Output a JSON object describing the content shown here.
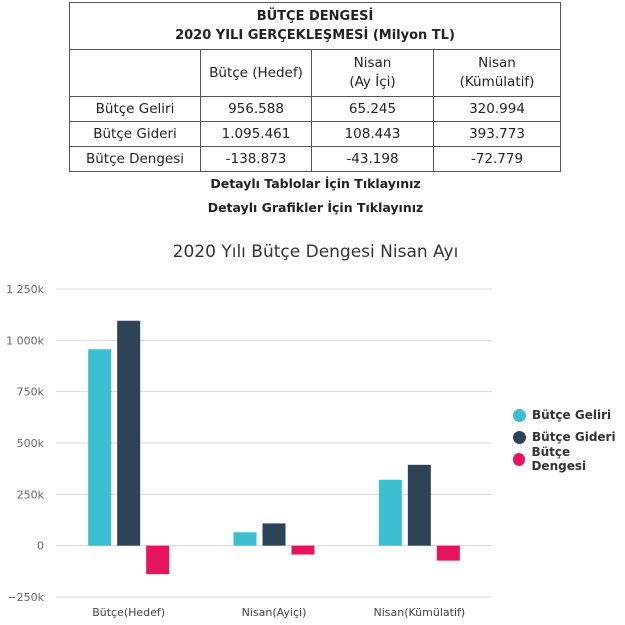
{
  "table": {
    "title_line1": "BÜTÇE DENGESİ",
    "title_line2": "2020 YILI GERÇEKLEŞMESİ (Milyon TL)",
    "columns": [
      {
        "line1": "Bütçe (Hedef)",
        "line2": ""
      },
      {
        "line1": "Nisan",
        "line2": "(Ay İçi)"
      },
      {
        "line1": "Nisan",
        "line2": "(Kümülatif)"
      }
    ],
    "rows": [
      {
        "label": "Bütçe Geliri",
        "values": [
          "956.588",
          "65.245",
          "320.994"
        ]
      },
      {
        "label": "Bütçe Gideri",
        "values": [
          "1.095.461",
          "108.443",
          "393.773"
        ]
      },
      {
        "label": "Bütçe Dengesi",
        "values": [
          "-138.873",
          "-43.198",
          "-72.779"
        ]
      }
    ]
  },
  "links": {
    "tables": "Detaylı Tablolar İçin Tıklayınız",
    "graphics": "Detaylı Grafikler İçin Tıklayınız"
  },
  "chart_data": {
    "type": "bar",
    "title": "2020 Yılı Bütçe Dengesi Nisan Ayı",
    "categories": [
      "Bütçe(Hedef)",
      "Nisan(Ayiçi)",
      "Nisan(Kümülatif)"
    ],
    "series": [
      {
        "name": "Bütçe Geliri",
        "color": "#3dbdd0",
        "values": [
          956588,
          65245,
          320994
        ]
      },
      {
        "name": "Bütçe Gideri",
        "color": "#2d4457",
        "values": [
          1095461,
          108443,
          393773
        ]
      },
      {
        "name": "Bütçe Dengesi",
        "color": "#e8135f",
        "values": [
          -138873,
          -43198,
          -72779
        ]
      }
    ],
    "ylim": [
      -250000,
      1250000
    ],
    "y_ticks": [
      -250000,
      0,
      250000,
      500000,
      750000,
      1000000,
      1250000
    ],
    "y_tick_labels": [
      "−250k",
      "0",
      "250k",
      "500k",
      "750k",
      "1 000k",
      "1 250k"
    ],
    "grid": true,
    "legend_position": "right"
  }
}
